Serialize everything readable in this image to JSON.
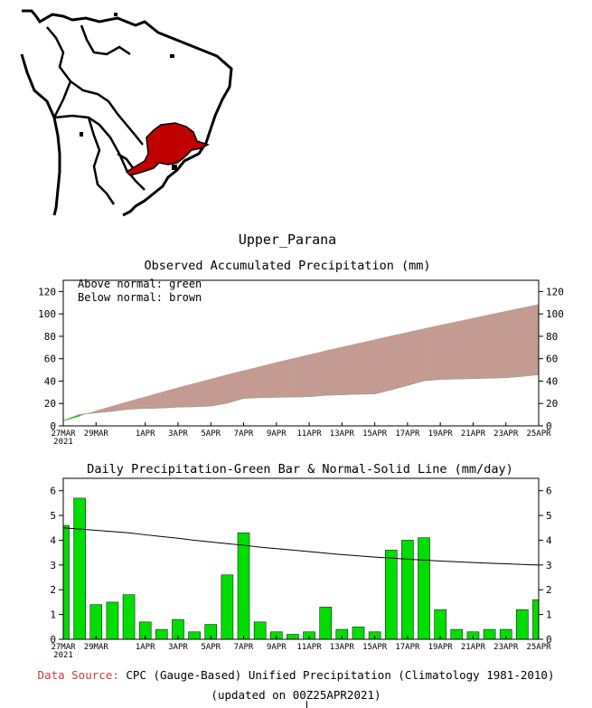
{
  "region_name": "Upper_Parana",
  "map": {
    "highlight_color": "#c00000",
    "outline_color": "#000000"
  },
  "accum_chart": {
    "title": "Observed Accumulated Precipitation (mm)",
    "legend_above": "Above normal: green",
    "legend_below": "Below normal: brown",
    "above_color": "#00d000",
    "below_color": "#c39b92"
  },
  "daily_chart": {
    "title": "Daily Precipitation-Green Bar & Normal-Solid Line (mm/day)",
    "bar_color": "#00dd00",
    "line_color": "#000000"
  },
  "x_ticks": [
    {
      "day": 0,
      "label": "27MAR",
      "sub": "2021"
    },
    {
      "day": 2,
      "label": "29MAR",
      "sub": ""
    },
    {
      "day": 5,
      "label": "1APR",
      "sub": ""
    },
    {
      "day": 7,
      "label": "3APR",
      "sub": ""
    },
    {
      "day": 9,
      "label": "5APR",
      "sub": ""
    },
    {
      "day": 11,
      "label": "7APR",
      "sub": ""
    },
    {
      "day": 13,
      "label": "9APR",
      "sub": ""
    },
    {
      "day": 15,
      "label": "11APR",
      "sub": ""
    },
    {
      "day": 17,
      "label": "13APR",
      "sub": ""
    },
    {
      "day": 19,
      "label": "15APR",
      "sub": ""
    },
    {
      "day": 21,
      "label": "17APR",
      "sub": ""
    },
    {
      "day": 23,
      "label": "19APR",
      "sub": ""
    },
    {
      "day": 25,
      "label": "21APR",
      "sub": ""
    },
    {
      "day": 27,
      "label": "23APR",
      "sub": ""
    },
    {
      "day": 29,
      "label": "25APR",
      "sub": ""
    }
  ],
  "chart_data": [
    {
      "type": "area",
      "title": "Observed Accumulated Precipitation (mm)",
      "x": [
        "27MAR",
        "28MAR",
        "29MAR",
        "30MAR",
        "31MAR",
        "1APR",
        "2APR",
        "3APR",
        "4APR",
        "5APR",
        "6APR",
        "7APR",
        "8APR",
        "9APR",
        "10APR",
        "11APR",
        "12APR",
        "13APR",
        "14APR",
        "15APR",
        "16APR",
        "17APR",
        "18APR",
        "19APR",
        "20APR",
        "21APR",
        "22APR",
        "23APR",
        "24APR",
        "25APR"
      ],
      "series": [
        {
          "name": "Observed",
          "values": [
            4.6,
            10.2,
            11.6,
            13.1,
            14.9,
            15.6,
            16.0,
            16.8,
            17.1,
            17.7,
            20.3,
            24.6,
            25.3,
            25.6,
            25.8,
            26.1,
            27.4,
            27.8,
            28.3,
            28.6,
            32.2,
            36.2,
            40.3,
            41.5,
            41.9,
            42.2,
            42.6,
            43.0,
            44.2,
            45.8
          ]
        },
        {
          "name": "Normal",
          "values": [
            4.5,
            8.9,
            13.3,
            17.6,
            21.8,
            25.9,
            30.0,
            34.0,
            37.9,
            41.8,
            45.6,
            49.3,
            52.9,
            56.5,
            60.0,
            63.5,
            66.9,
            70.3,
            73.6,
            76.9,
            80.2,
            83.5,
            86.7,
            89.9,
            93.0,
            96.1,
            99.2,
            102.3,
            105.4,
            108.4
          ]
        }
      ],
      "ylim": [
        0,
        130
      ],
      "yticks": [
        0,
        20,
        40,
        60,
        80,
        100,
        120
      ],
      "legend": [
        "Above normal: green",
        "Below normal: brown"
      ]
    },
    {
      "type": "bar",
      "title": "Daily Precipitation-Green Bar & Normal-Solid Line (mm/day)",
      "x": [
        "27MAR",
        "28MAR",
        "29MAR",
        "30MAR",
        "31MAR",
        "1APR",
        "2APR",
        "3APR",
        "4APR",
        "5APR",
        "6APR",
        "7APR",
        "8APR",
        "9APR",
        "10APR",
        "11APR",
        "12APR",
        "13APR",
        "14APR",
        "15APR",
        "16APR",
        "17APR",
        "18APR",
        "19APR",
        "20APR",
        "21APR",
        "22APR",
        "23APR",
        "24APR",
        "25APR"
      ],
      "series": [
        {
          "name": "Daily Precipitation",
          "values": [
            4.6,
            5.7,
            1.4,
            1.5,
            1.8,
            0.7,
            0.4,
            0.8,
            0.3,
            0.6,
            2.6,
            4.3,
            0.7,
            0.3,
            0.2,
            0.3,
            1.3,
            0.4,
            0.5,
            0.3,
            3.6,
            4.0,
            4.1,
            1.2,
            0.4,
            0.3,
            0.4,
            0.4,
            1.2,
            1.6
          ]
        },
        {
          "name": "Normal",
          "values": [
            4.5,
            4.45,
            4.4,
            4.35,
            4.3,
            4.22,
            4.15,
            4.08,
            4.0,
            3.93,
            3.86,
            3.8,
            3.72,
            3.66,
            3.6,
            3.54,
            3.48,
            3.42,
            3.37,
            3.32,
            3.28,
            3.23,
            3.2,
            3.16,
            3.13,
            3.1,
            3.07,
            3.05,
            3.02,
            3.0
          ]
        }
      ],
      "ylim": [
        0,
        6.5
      ],
      "yticks": [
        0,
        1,
        2,
        3,
        4,
        5,
        6
      ]
    }
  ],
  "footer": {
    "source_label": "Data Source:",
    "source_text": "CPC (Gauge-Based) Unified Precipitation (Climatology 1981-2010)",
    "updated": "(updated on 00Z25APR2021)"
  }
}
